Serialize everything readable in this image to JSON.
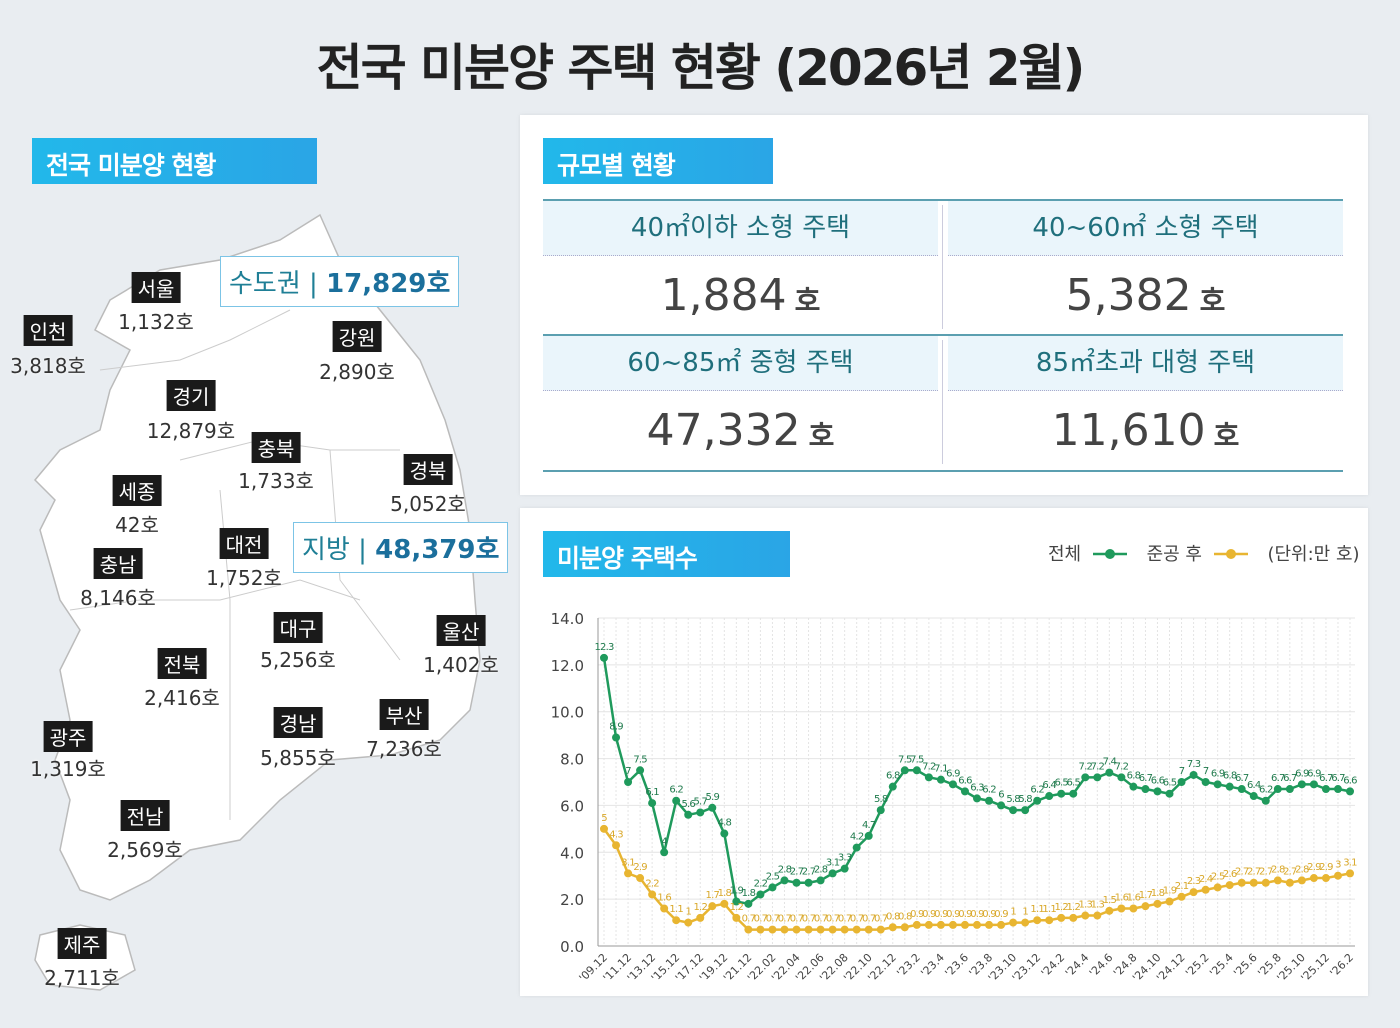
{
  "title": "전국 미분양 주택 현황  (2026년 2월)",
  "map": {
    "header": "전국 미분양 현황",
    "capital": {
      "label": "수도권",
      "value": "17,829호"
    },
    "local": {
      "label": "지방",
      "value": "48,379호"
    },
    "regions": [
      {
        "name": "서울",
        "value": "1,132호"
      },
      {
        "name": "인천",
        "value": "3,818호"
      },
      {
        "name": "강원",
        "value": "2,890호"
      },
      {
        "name": "경기",
        "value": "12,879호"
      },
      {
        "name": "충북",
        "value": "1,733호"
      },
      {
        "name": "경북",
        "value": "5,052호"
      },
      {
        "name": "세종",
        "value": "42호"
      },
      {
        "name": "대전",
        "value": "1,752호"
      },
      {
        "name": "충남",
        "value": "8,146호"
      },
      {
        "name": "대구",
        "value": "5,256호"
      },
      {
        "name": "울산",
        "value": "1,402호"
      },
      {
        "name": "전북",
        "value": "2,416호"
      },
      {
        "name": "경남",
        "value": "5,855호"
      },
      {
        "name": "부산",
        "value": "7,236호"
      },
      {
        "name": "광주",
        "value": "1,319호"
      },
      {
        "name": "전남",
        "value": "2,569호"
      },
      {
        "name": "제주",
        "value": "2,711호"
      }
    ]
  },
  "size": {
    "header": "규모별 현황",
    "unit": "호",
    "cells": [
      {
        "label": "40㎡이하 소형 주택",
        "value": "1,884"
      },
      {
        "label": "40~60㎡ 소형 주택",
        "value": "5,382"
      },
      {
        "label": "60~85㎡ 중형 주택",
        "value": "47,332"
      },
      {
        "label": "85㎡초과 대형 주택",
        "value": "11,610"
      }
    ]
  },
  "chart_header": "미분양 주택수",
  "chart_data": {
    "type": "line",
    "unit_label": "(단위:만 호)",
    "ylim": [
      0,
      14
    ],
    "yticks": [
      "0.0",
      "2.0",
      "4.0",
      "6.0",
      "8.0",
      "10.0",
      "12.0",
      "14.0"
    ],
    "grid": true,
    "legend": "top-right",
    "x": [
      "'09.12",
      "'10.12",
      "'11.12",
      "'12.12",
      "'13.12",
      "'14.12",
      "'15.12",
      "'16.12",
      "'17.12",
      "'18.12",
      "'19.12",
      "'20.12",
      "'21.12",
      "'22.01",
      "'22.02",
      "'22.03",
      "'22.04",
      "'22.05",
      "'22.06",
      "'22.07",
      "'22.08",
      "'22.09",
      "'22.10",
      "'22.11",
      "'22.12",
      "'23.1",
      "'23.2",
      "'23.3",
      "'23.4",
      "'23.5",
      "'23.6",
      "'23.7",
      "'23.8",
      "'23.9",
      "'23.10",
      "'23.11",
      "'23.12",
      "'24.1",
      "'24.2",
      "'24.3",
      "'24.4",
      "'24.5",
      "'24.6",
      "'24.7",
      "'24.8",
      "'24.9",
      "'24.10",
      "'24.11",
      "'24.12",
      "'25.1",
      "'25.2",
      "'25.3",
      "'25.4",
      "'25.5",
      "'25.6",
      "'25.7",
      "'25.8",
      "'25.9",
      "'25.10",
      "'25.11",
      "'25.12",
      "'26.1",
      "'26.2"
    ],
    "xtick_labels": [
      "'09.12",
      "'11.12",
      "'13.12",
      "'15.12",
      "'17.12",
      "'19.12",
      "'21.12",
      "'22.02",
      "'22.04",
      "'22.06",
      "'22.08",
      "'22.10",
      "'22.12",
      "'23.2",
      "'23.4",
      "'23.6",
      "'23.8",
      "'23.10",
      "'23.12",
      "'24.2",
      "'24.4",
      "'24.6",
      "'24.8",
      "'24.10",
      "'24.12",
      "'25.2",
      "'25.4",
      "'25.6",
      "'25.8",
      "'25.10",
      "'25.12",
      "'26.2"
    ],
    "series": [
      {
        "name": "전체",
        "color": "#1f9a5c",
        "values": [
          12.3,
          8.9,
          7.0,
          7.5,
          6.1,
          4.0,
          6.2,
          5.6,
          5.7,
          5.9,
          4.8,
          1.9,
          1.8,
          2.2,
          2.5,
          2.8,
          2.7,
          2.7,
          2.8,
          3.1,
          3.3,
          4.2,
          4.7,
          5.8,
          6.8,
          7.5,
          7.5,
          7.2,
          7.1,
          6.9,
          6.6,
          6.3,
          6.2,
          6.0,
          5.8,
          5.8,
          6.2,
          6.4,
          6.5,
          6.5,
          7.2,
          7.2,
          7.4,
          7.2,
          6.8,
          6.7,
          6.6,
          6.5,
          7,
          7.3,
          7,
          6.9,
          6.8,
          6.7,
          6.4,
          6.2,
          6.7,
          6.7,
          6.9,
          6.9,
          6.7,
          6.7,
          6.6
        ]
      },
      {
        "name": "준공 후",
        "color": "#e8b531",
        "values": [
          5.0,
          4.3,
          3.1,
          2.9,
          2.2,
          1.6,
          1.1,
          1.0,
          1.2,
          1.7,
          1.8,
          1.2,
          0.7,
          0.7,
          0.7,
          0.7,
          0.7,
          0.7,
          0.7,
          0.7,
          0.7,
          0.7,
          0.7,
          0.7,
          0.8,
          0.8,
          0.9,
          0.9,
          0.9,
          0.9,
          0.9,
          0.9,
          0.9,
          0.9,
          1,
          1,
          1.1,
          1.1,
          1.2,
          1.2,
          1.3,
          1.3,
          1.5,
          1.6,
          1.6,
          1.7,
          1.8,
          1.9,
          2.1,
          2.3,
          2.4,
          2.5,
          2.6,
          2.7,
          2.7,
          2.7,
          2.8,
          2.7,
          2.8,
          2.9,
          2.9,
          3,
          3.1
        ]
      }
    ]
  }
}
